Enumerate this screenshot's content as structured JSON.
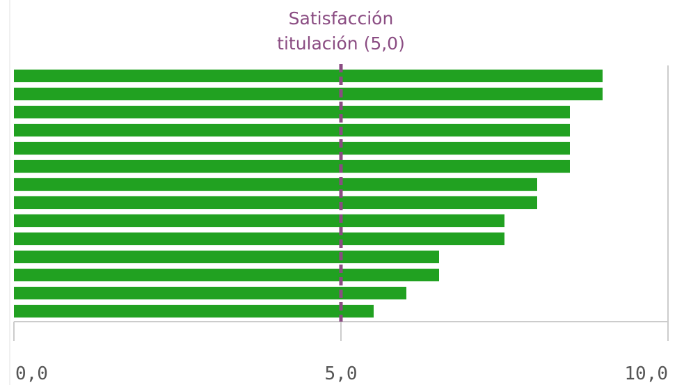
{
  "chart_data": {
    "type": "hbar",
    "categories": [
      null,
      null,
      null,
      null,
      null,
      null,
      null,
      null,
      null,
      null,
      null,
      null,
      null,
      null
    ],
    "values": [
      9.0,
      9.0,
      8.5,
      8.5,
      8.5,
      8.5,
      8.0,
      8.0,
      7.5,
      7.5,
      6.5,
      6.5,
      6.0,
      5.5
    ],
    "color": "#21a121",
    "xlim": [
      0,
      10
    ],
    "xticks": [
      {
        "value": 0,
        "label": "0,0"
      },
      {
        "value": 5,
        "label": "5,0"
      },
      {
        "value": 10,
        "label": "10,0"
      }
    ],
    "reference_line": {
      "value": 5,
      "color": "#8a4c82",
      "label": [
        "Satisfacción",
        "titulación (5,0)"
      ]
    }
  }
}
